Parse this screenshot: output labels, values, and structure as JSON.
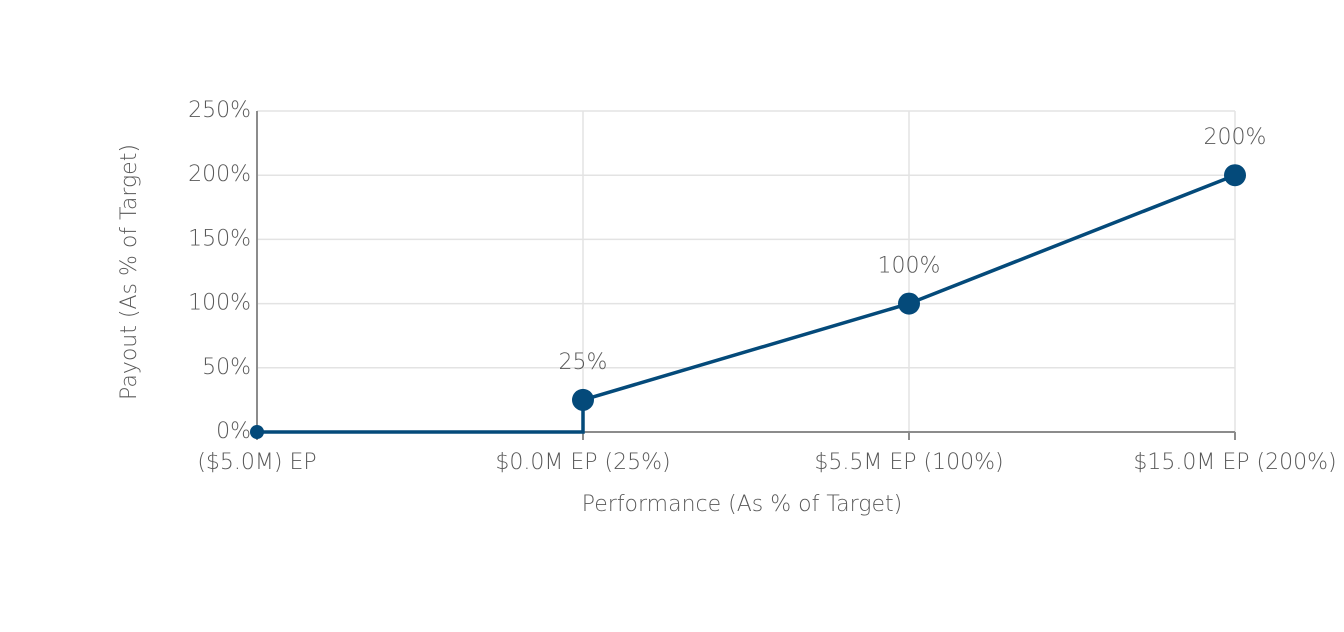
{
  "chart_data": {
    "type": "line",
    "x": [
      0,
      1,
      1,
      2,
      3
    ],
    "values": [
      0,
      0,
      25,
      100,
      200
    ],
    "value_labels": [
      null,
      null,
      "25%",
      "100%",
      "200%"
    ],
    "color": "#044a7a",
    "xlim": [
      0,
      3
    ],
    "xticks": [
      {
        "value": 0,
        "label": "($5.0M) EP"
      },
      {
        "value": 1,
        "label": "$0.0M EP (25%)"
      },
      {
        "value": 2,
        "label": "$5.5M EP (100%)"
      },
      {
        "value": 3,
        "label": "$15.0M EP (200%)"
      }
    ],
    "ylim": [
      0,
      250
    ],
    "yticks": [
      {
        "value": 0,
        "label": "0%"
      },
      {
        "value": 50,
        "label": "50%"
      },
      {
        "value": 100,
        "label": "100%"
      },
      {
        "value": 150,
        "label": "150%"
      },
      {
        "value": 200,
        "label": "200%"
      },
      {
        "value": 250,
        "label": "250%"
      }
    ],
    "xlabel": "Performance (As % of Target)",
    "ylabel": "Payout (As % of Target)",
    "grid": true
  }
}
